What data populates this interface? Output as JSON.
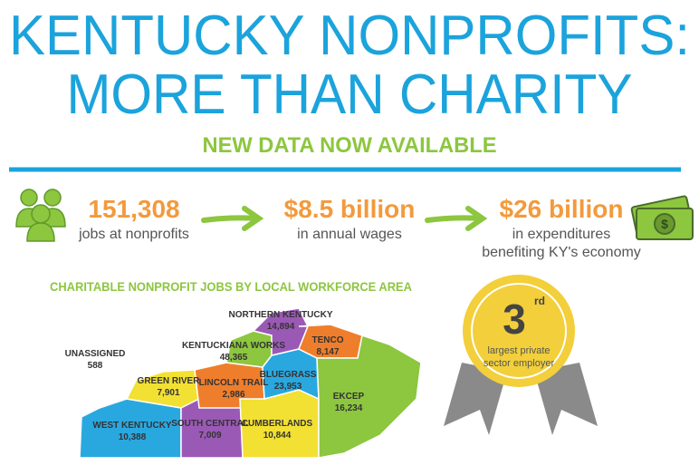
{
  "header": {
    "title_line1": "KENTUCKY NONPROFITS:",
    "title_line2": "MORE THAN CHARITY",
    "subtitle": "NEW DATA NOW AVAILABLE"
  },
  "stats": [
    {
      "value": "151,308",
      "label": "jobs at nonprofits"
    },
    {
      "value": "$8.5 billion",
      "label": "in annual wages"
    },
    {
      "value": "$26 billion",
      "label": "in expenditures",
      "label_line2": "benefiting KY's economy"
    }
  ],
  "map": {
    "title": "CHARITABLE NONPROFIT JOBS BY LOCAL WORKFORCE AREA",
    "regions": [
      {
        "name": "NORTHERN KENTUCKY",
        "jobs": "14,894"
      },
      {
        "name": "TENCO",
        "jobs": "8,147"
      },
      {
        "name": "KENTUCKIANA WORKS",
        "jobs": "48,365"
      },
      {
        "name": "UNASSIGNED",
        "jobs": "588"
      },
      {
        "name": "BLUEGRASS",
        "jobs": "23,953"
      },
      {
        "name": "GREEN RIVER",
        "jobs": "7,901"
      },
      {
        "name": "LINCOLN TRAIL",
        "jobs": "2,986"
      },
      {
        "name": "EKCEP",
        "jobs": "16,234"
      },
      {
        "name": "WEST KENTUCKY",
        "jobs": "10,388"
      },
      {
        "name": "SOUTH CENTRAL",
        "jobs": "7,009"
      },
      {
        "name": "CUMBERLANDS",
        "jobs": "10,844"
      }
    ]
  },
  "badge": {
    "rank": "3",
    "suffix": "rd",
    "line1": "largest private",
    "line2": "sector employer"
  }
}
